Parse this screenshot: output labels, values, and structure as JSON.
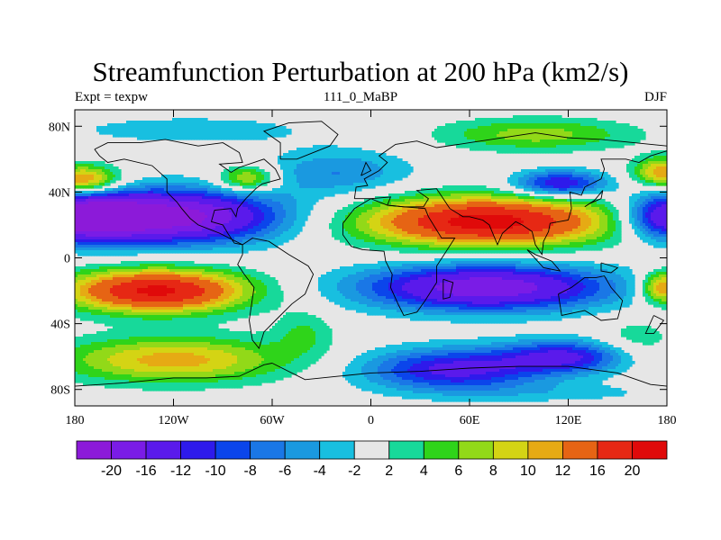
{
  "title": "Streamfunction Perturbation at 200 hPa (km2/s)",
  "left_string": "Expt = texpw",
  "center_string": "111_0_MaBP",
  "right_string": "DJF",
  "map": {
    "type": "filled-contour",
    "projection": "cylindrical-equidistant",
    "lon_range": [
      -180,
      180
    ],
    "lat_range": [
      -90,
      90
    ],
    "lon_ticks": [
      {
        "value": -180,
        "label": "180"
      },
      {
        "value": -120,
        "label": "120W"
      },
      {
        "value": -60,
        "label": "60W"
      },
      {
        "value": 0,
        "label": "0"
      },
      {
        "value": 60,
        "label": "60E"
      },
      {
        "value": 120,
        "label": "120E"
      },
      {
        "value": 180,
        "label": "180"
      }
    ],
    "lat_ticks": [
      {
        "value": 80,
        "label": "80N"
      },
      {
        "value": 40,
        "label": "40N"
      },
      {
        "value": 0,
        "label": "0"
      },
      {
        "value": -40,
        "label": "40S"
      },
      {
        "value": -80,
        "label": "80S"
      }
    ],
    "background_color": "#e6e6e6",
    "centers": [
      {
        "lon": -120,
        "lat": 25,
        "value": -22,
        "lon_radius": 65,
        "lat_radius": 16
      },
      {
        "lon": -175,
        "lat": 25,
        "value": -18,
        "lon_radius": 35,
        "lat_radius": 14
      },
      {
        "lon": 180,
        "lat": 25,
        "value": -18,
        "lon_radius": 25,
        "lat_radius": 14
      },
      {
        "lon": 70,
        "lat": 22,
        "value": 22,
        "lon_radius": 75,
        "lat_radius": 15
      },
      {
        "lon": -130,
        "lat": -20,
        "value": 21,
        "lon_radius": 55,
        "lat_radius": 13
      },
      {
        "lon": 70,
        "lat": -18,
        "value": -19,
        "lon_radius": 75,
        "lat_radius": 14
      },
      {
        "lon": -175,
        "lat": 47,
        "value": 14,
        "lon_radius": 22,
        "lat_radius": 9
      },
      {
        "lon": -75,
        "lat": 48,
        "value": 10,
        "lon_radius": 18,
        "lat_radius": 8
      },
      {
        "lon": -20,
        "lat": 52,
        "value": -6,
        "lon_radius": 45,
        "lat_radius": 14
      },
      {
        "lon": 115,
        "lat": 45,
        "value": -13,
        "lon_radius": 28,
        "lat_radius": 8
      },
      {
        "lon": 100,
        "lat": 75,
        "value": 7,
        "lon_radius": 60,
        "lat_radius": 10
      },
      {
        "lon": -110,
        "lat": 78,
        "value": -3,
        "lon_radius": 90,
        "lat_radius": 10
      },
      {
        "lon": 178,
        "lat": 52,
        "value": 12,
        "lon_radius": 18,
        "lat_radius": 9
      },
      {
        "lon": 178,
        "lat": -18,
        "value": 14,
        "lon_radius": 14,
        "lat_radius": 10
      },
      {
        "lon": -120,
        "lat": -62,
        "value": 11,
        "lon_radius": 70,
        "lat_radius": 14
      },
      {
        "lon": 50,
        "lat": -68,
        "value": -13,
        "lon_radius": 55,
        "lat_radius": 13
      },
      {
        "lon": 120,
        "lat": -60,
        "value": -12,
        "lon_radius": 40,
        "lat_radius": 10
      },
      {
        "lon": -40,
        "lat": -45,
        "value": 4,
        "lon_radius": 18,
        "lat_radius": 14
      },
      {
        "lon": 160,
        "lat": -52,
        "value": 4,
        "lon_radius": 25,
        "lat_radius": 15
      },
      {
        "lon": 120,
        "lat": -82,
        "value": -2.5,
        "lon_radius": 70,
        "lat_radius": 6
      }
    ]
  },
  "colorbar": {
    "levels": [
      "-20",
      "-16",
      "-12",
      "-10",
      "-8",
      "-6",
      "-4",
      "-2",
      "2",
      "4",
      "6",
      "8",
      "10",
      "12",
      "16",
      "20"
    ],
    "colors": [
      "#8c1ad9",
      "#7a1ce6",
      "#5a1aeb",
      "#2e1aeb",
      "#0b45eb",
      "#1a77e6",
      "#1a99e0",
      "#18bfe0",
      "#e6e6e6",
      "#17d99a",
      "#2fd41a",
      "#92d918",
      "#d4d414",
      "#e6aa14",
      "#e66414",
      "#e62814",
      "#e00a0a"
    ]
  }
}
